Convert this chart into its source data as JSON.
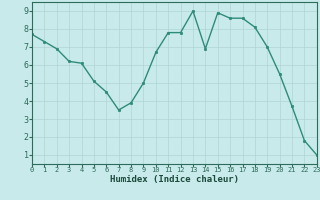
{
  "x": [
    0,
    1,
    2,
    3,
    4,
    5,
    6,
    7,
    8,
    9,
    10,
    11,
    12,
    13,
    14,
    15,
    16,
    17,
    18,
    19,
    20,
    21,
    22,
    23
  ],
  "y": [
    7.7,
    7.3,
    6.9,
    6.2,
    6.1,
    5.1,
    4.5,
    3.5,
    3.9,
    5.0,
    6.7,
    7.8,
    7.8,
    9.0,
    6.9,
    8.9,
    8.6,
    8.6,
    8.1,
    7.0,
    5.5,
    3.7,
    1.8,
    1.0
  ],
  "xlabel": "Humidex (Indice chaleur)",
  "xlim": [
    0,
    23
  ],
  "ylim": [
    0.5,
    9.5
  ],
  "yticks": [
    1,
    2,
    3,
    4,
    5,
    6,
    7,
    8,
    9
  ],
  "xticks": [
    0,
    1,
    2,
    3,
    4,
    5,
    6,
    7,
    8,
    9,
    10,
    11,
    12,
    13,
    14,
    15,
    16,
    17,
    18,
    19,
    20,
    21,
    22,
    23
  ],
  "line_color": "#2e8b7a",
  "marker_color": "#2e8b7a",
  "bg_color": "#c8eaea",
  "grid_color": "#b0d4d4",
  "font_color": "#2e6b5a",
  "xlabel_color": "#1a4a3a"
}
